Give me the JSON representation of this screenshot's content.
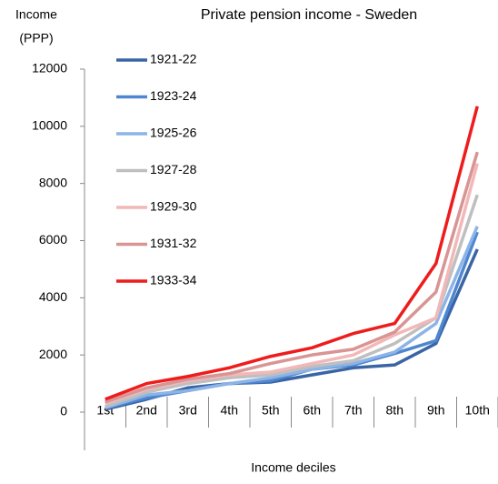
{
  "chart_data": {
    "type": "line",
    "title": "Private pension income - Sweden",
    "ylabel": [
      "Income",
      "(PPP)"
    ],
    "xlabel": "Income deciles",
    "categories": [
      "1st",
      "2nd",
      "3rd",
      "4th",
      "5th",
      "6th",
      "7th",
      "8th",
      "9th",
      "10th"
    ],
    "series": [
      {
        "name": "1921-22",
        "color": "#3a65a5",
        "values": [
          100,
          450,
          850,
          1000,
          1050,
          1300,
          1550,
          1650,
          2400,
          5700
        ]
      },
      {
        "name": "1923-24",
        "color": "#4f86d1",
        "values": [
          150,
          500,
          750,
          1000,
          1100,
          1500,
          1650,
          2050,
          2500,
          6300
        ]
      },
      {
        "name": "1925-26",
        "color": "#8cb4e6",
        "values": [
          150,
          600,
          750,
          1000,
          1200,
          1500,
          1700,
          2100,
          3100,
          6500
        ]
      },
      {
        "name": "1927-28",
        "color": "#bfbfbf",
        "values": [
          200,
          700,
          1000,
          1200,
          1300,
          1600,
          1800,
          2400,
          3300,
          7600
        ]
      },
      {
        "name": "1929-30",
        "color": "#f2b8b8",
        "values": [
          300,
          800,
          1100,
          1300,
          1400,
          1700,
          2000,
          2700,
          3300,
          8700
        ]
      },
      {
        "name": "1931-32",
        "color": "#d99494",
        "values": [
          350,
          850,
          1150,
          1350,
          1700,
          2000,
          2200,
          2800,
          4200,
          9100
        ]
      },
      {
        "name": "1933-34",
        "color": "#ee1c1c",
        "values": [
          450,
          1000,
          1250,
          1550,
          1950,
          2250,
          2750,
          3100,
          5200,
          10700
        ]
      }
    ],
    "ylim": [
      0,
      12000
    ],
    "yticks": [
      0,
      2000,
      4000,
      6000,
      8000,
      10000,
      12000
    ],
    "legend": "upper left"
  }
}
